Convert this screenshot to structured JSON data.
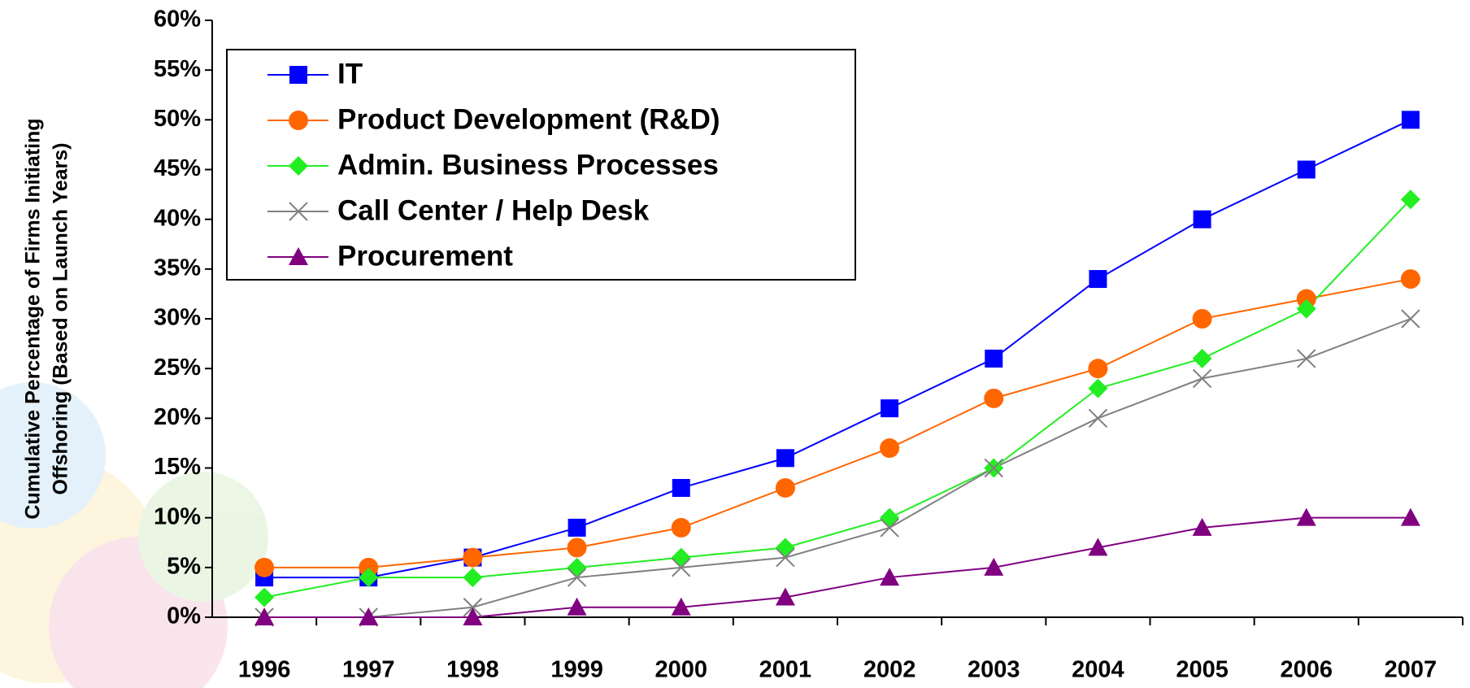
{
  "chart_data": {
    "type": "line",
    "y_label": [
      "Cumulative Percentage of Firms Initiating",
      "Offshoring (Based on Launch Years)"
    ],
    "categories": [
      "1996",
      "1997",
      "1998",
      "1999",
      "2000",
      "2001",
      "2002",
      "2003",
      "2004",
      "2005",
      "2006",
      "2007"
    ],
    "series": [
      {
        "name": "IT",
        "color": "#0000ff",
        "marker": "square",
        "values": [
          4,
          4,
          6,
          9,
          13,
          16,
          21,
          26,
          34,
          40,
          45,
          50
        ]
      },
      {
        "name": "Product Development (R&D)",
        "color": "#ff6600",
        "marker": "circle",
        "values": [
          5,
          5,
          6,
          7,
          9,
          13,
          17,
          22,
          25,
          30,
          32,
          34
        ]
      },
      {
        "name": "Admin. Business Processes",
        "color": "#22ee22",
        "marker": "diamond",
        "values": [
          2,
          4,
          4,
          5,
          6,
          7,
          10,
          15,
          23,
          26,
          31,
          42
        ]
      },
      {
        "name": "Call Center / Help Desk",
        "color": "#808080",
        "marker": "x",
        "values": [
          0,
          0,
          1,
          4,
          5,
          6,
          9,
          15,
          20,
          24,
          26,
          30
        ]
      },
      {
        "name": "Procurement",
        "color": "#800080",
        "marker": "triangle",
        "values": [
          0,
          0,
          0,
          1,
          1,
          2,
          4,
          5,
          7,
          9,
          10,
          10
        ]
      }
    ],
    "ylim": [
      0,
      60
    ],
    "yticks": [
      {
        "value": 0,
        "label": "0%"
      },
      {
        "value": 5,
        "label": "5%"
      },
      {
        "value": 10,
        "label": "10%"
      },
      {
        "value": 15,
        "label": "15%"
      },
      {
        "value": 20,
        "label": "20%"
      },
      {
        "value": 25,
        "label": "25%"
      },
      {
        "value": 30,
        "label": "30%"
      },
      {
        "value": 35,
        "label": "35%"
      },
      {
        "value": 40,
        "label": "40%"
      },
      {
        "value": 45,
        "label": "45%"
      },
      {
        "value": 50,
        "label": "50%"
      },
      {
        "value": 55,
        "label": "55%"
      },
      {
        "value": 60,
        "label": "60%"
      }
    ],
    "grid": false,
    "legend": "upper left"
  }
}
